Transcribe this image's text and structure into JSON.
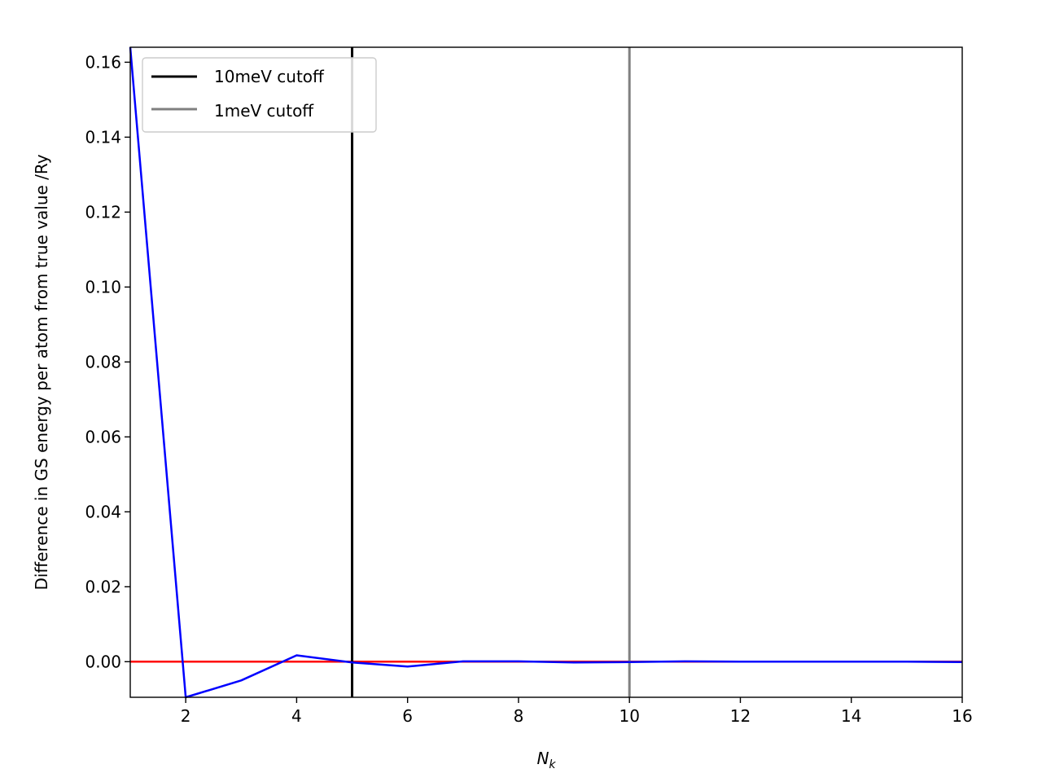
{
  "chart_data": {
    "type": "line",
    "xlabel_main": "N",
    "xlabel_sub": "k",
    "ylabel": "Difference in GS energy per atom from true value /Ry",
    "xlim": [
      1,
      16
    ],
    "ylim": [
      -0.0095,
      0.164
    ],
    "xticks": [
      2,
      4,
      6,
      8,
      10,
      12,
      14,
      16
    ],
    "xtick_labels": [
      "2",
      "4",
      "6",
      "8",
      "10",
      "12",
      "14",
      "16"
    ],
    "yticks": [
      0.0,
      0.02,
      0.04,
      0.06,
      0.08,
      0.1,
      0.12,
      0.14,
      0.16
    ],
    "ytick_labels": [
      "0.00",
      "0.02",
      "0.04",
      "0.06",
      "0.08",
      "0.10",
      "0.12",
      "0.14",
      "0.16"
    ],
    "grid": false,
    "legend_position": "top-left",
    "series": [
      {
        "color": "#0000ff",
        "x": [
          1,
          2,
          3,
          4,
          5,
          6,
          7,
          8,
          9,
          10,
          11,
          12,
          13,
          14,
          15,
          16
        ],
        "y": [
          0.164,
          -0.0095,
          -0.005,
          0.0017,
          -0.0002,
          -0.0013,
          0.0001,
          0.0001,
          -0.0002,
          -0.0001,
          0.0001,
          0.0,
          0.0,
          0.0,
          0.0,
          -0.0001
        ]
      }
    ],
    "hlines": [
      {
        "y": 0.0,
        "color": "#ff0000"
      }
    ],
    "vlines": [
      {
        "x": 5,
        "color": "#000000",
        "label": "10meV cutoff"
      },
      {
        "x": 10,
        "color": "#808080",
        "label": "1meV cutoff"
      }
    ]
  }
}
